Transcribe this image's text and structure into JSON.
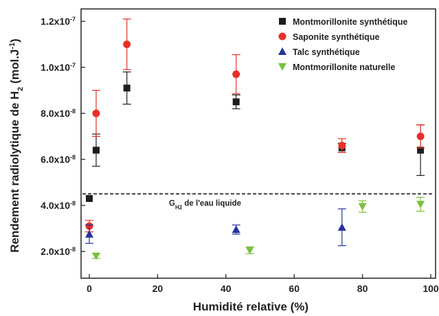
{
  "chart_data": {
    "type": "scatter",
    "xlabel": "Humidité relative (%)",
    "ylabel_main": "Rendement radiolytique de H",
    "ylabel_sub": "2",
    "ylabel_unit": " (mol.J",
    "ylabel_unit_sup": "-1",
    "ylabel_close": ")",
    "xlim": [
      0,
      100
    ],
    "ylim": [
      1.2e-08,
      1.2e-07
    ],
    "x_ticks": [
      {
        "value": 0,
        "label": "0"
      },
      {
        "value": 20,
        "label": "20"
      },
      {
        "value": 40,
        "label": "40"
      },
      {
        "value": 60,
        "label": "60"
      },
      {
        "value": 80,
        "label": "80"
      },
      {
        "value": 100,
        "label": "100"
      }
    ],
    "y_ticks": [
      {
        "value": 2e-08,
        "mant": "2.0x10",
        "exp": "-8"
      },
      {
        "value": 4e-08,
        "mant": "4.0x10",
        "exp": "-8"
      },
      {
        "value": 6e-08,
        "mant": "6.0x10",
        "exp": "-8"
      },
      {
        "value": 8e-08,
        "mant": "8.0x10",
        "exp": "-8"
      },
      {
        "value": 1e-07,
        "mant": "1.0x10",
        "exp": "-7"
      },
      {
        "value": 1.2e-07,
        "mant": "1.2x10",
        "exp": "-7"
      }
    ],
    "series": [
      {
        "name": "Montmorillonite synthétique",
        "marker": "square",
        "color": "#1e1e1e",
        "points": [
          {
            "x": 0,
            "y": 4.3e-08
          },
          {
            "x": 2,
            "y": 6.4e-08,
            "err": 7e-09
          },
          {
            "x": 11,
            "y": 9.1e-08,
            "err": 7e-09
          },
          {
            "x": 43,
            "y": 8.5e-08,
            "err": 3e-09
          },
          {
            "x": 74,
            "y": 6.5e-08,
            "err": 2e-09
          },
          {
            "x": 97,
            "y": 6.4e-08,
            "err": 1.1e-08
          }
        ]
      },
      {
        "name": "Saponite synthétique",
        "marker": "circle",
        "color": "#e8302a",
        "points": [
          {
            "x": 0,
            "y": 3.1e-08,
            "err": 2.5e-09
          },
          {
            "x": 2,
            "y": 8e-08,
            "err": 1e-08
          },
          {
            "x": 11,
            "y": 1.1e-07,
            "err": 1.1e-08
          },
          {
            "x": 43,
            "y": 9.7e-08,
            "err": 8.5e-09
          },
          {
            "x": 74,
            "y": 6.6e-08,
            "err": 3e-09
          },
          {
            "x": 97,
            "y": 7e-08,
            "err": 5e-09
          }
        ]
      },
      {
        "name": "Talc synthétique",
        "marker": "triangle-up",
        "color": "#24349a",
        "points": [
          {
            "x": 0,
            "y": 2.75e-08,
            "err": 4e-09
          },
          {
            "x": 43,
            "y": 2.95e-08,
            "err": 2e-09
          },
          {
            "x": 74,
            "y": 3.05e-08,
            "err": 8e-09
          }
        ]
      },
      {
        "name": "Montmorillonite naturelle",
        "marker": "triangle-down",
        "color": "#7cc13f",
        "points": [
          {
            "x": 2,
            "y": 1.8e-08,
            "err": 1e-09
          },
          {
            "x": 47,
            "y": 2.05e-08,
            "err": 1.5e-09
          },
          {
            "x": 80,
            "y": 3.95e-08,
            "err": 2.5e-09
          },
          {
            "x": 97,
            "y": 4.05e-08,
            "err": 3e-09
          }
        ]
      }
    ],
    "reference_line": {
      "y": 4.5e-08,
      "style": "dashed",
      "label_main": "G",
      "label_sub": "H2",
      "label_rest": " de l'eau liquide"
    },
    "legend_position": "top-right",
    "grid": false
  }
}
